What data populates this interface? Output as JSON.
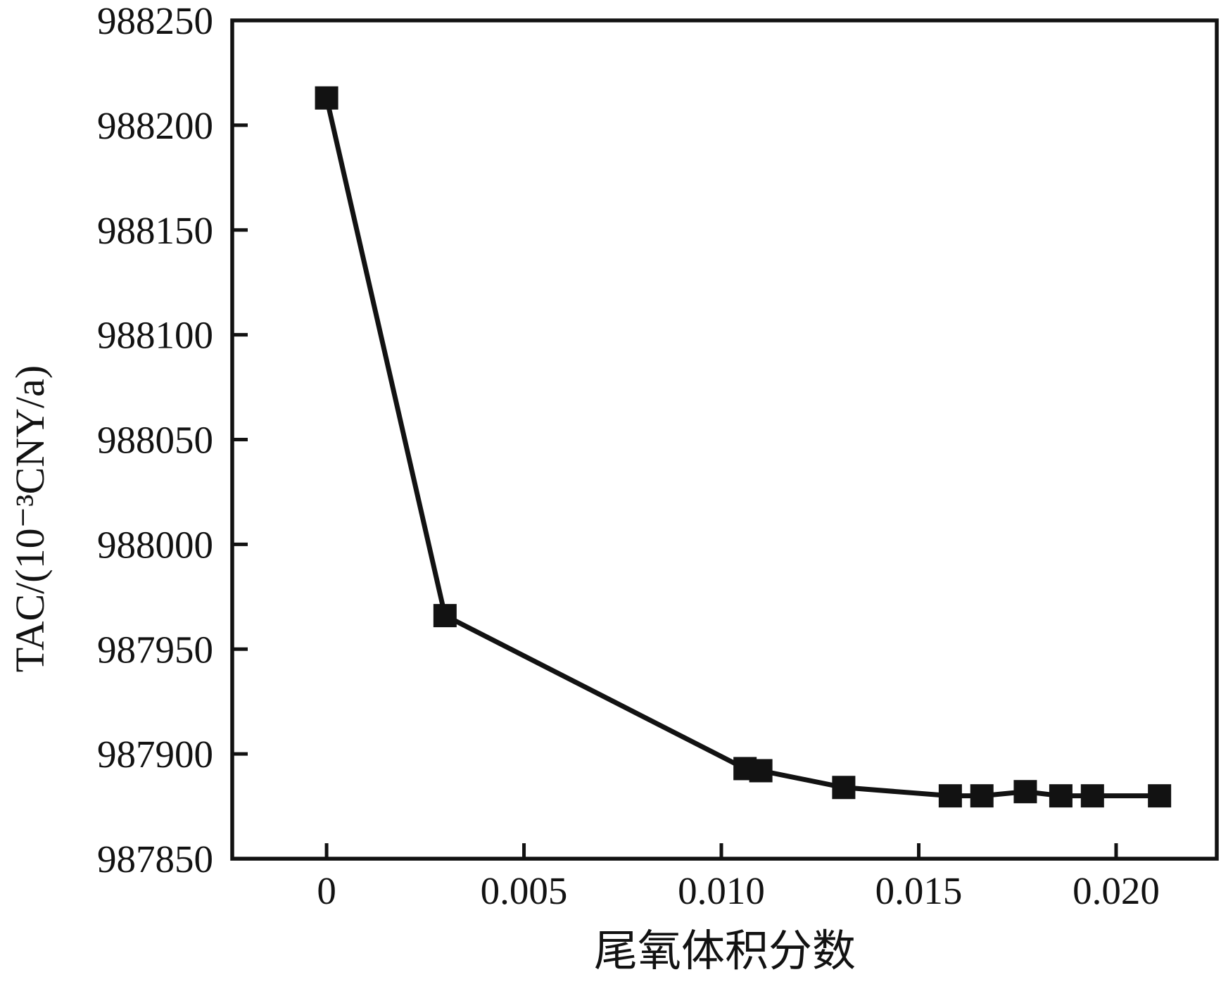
{
  "figure": {
    "background": "#ffffff",
    "ink_color": "#121212"
  },
  "chart_data": {
    "type": "line",
    "title": "",
    "xlabel": "尾氧体积分数",
    "ylabel": "TAC/(10⁻³CNY/a)",
    "grid": false,
    "legend": "none",
    "marker": "filled-square",
    "line_color": "#121212",
    "marker_color": "#121212",
    "xlim": [
      -0.00239,
      0.02255
    ],
    "ylim": [
      987850,
      988250
    ],
    "x_ticks": [
      0,
      0.005,
      0.01,
      0.015,
      0.02
    ],
    "x_tick_labels": [
      "0",
      "0.005",
      "0.010",
      "0.015",
      "0.020"
    ],
    "y_ticks": [
      987850,
      987900,
      987950,
      988000,
      988050,
      988100,
      988150,
      988200,
      988250
    ],
    "y_tick_labels": [
      "987850",
      "987900",
      "987950",
      "988000",
      "988050",
      "988100",
      "988150",
      "988200",
      "988250"
    ],
    "series": [
      {
        "name": "TAC",
        "x": [
          0,
          0.003,
          0.0106,
          0.011,
          0.0131,
          0.0158,
          0.0166,
          0.0177,
          0.0186,
          0.0194,
          0.0211
        ],
        "y": [
          988213,
          987966,
          987893,
          987892,
          987884,
          987880,
          987880,
          987882,
          987880,
          987880,
          987880
        ]
      }
    ]
  }
}
